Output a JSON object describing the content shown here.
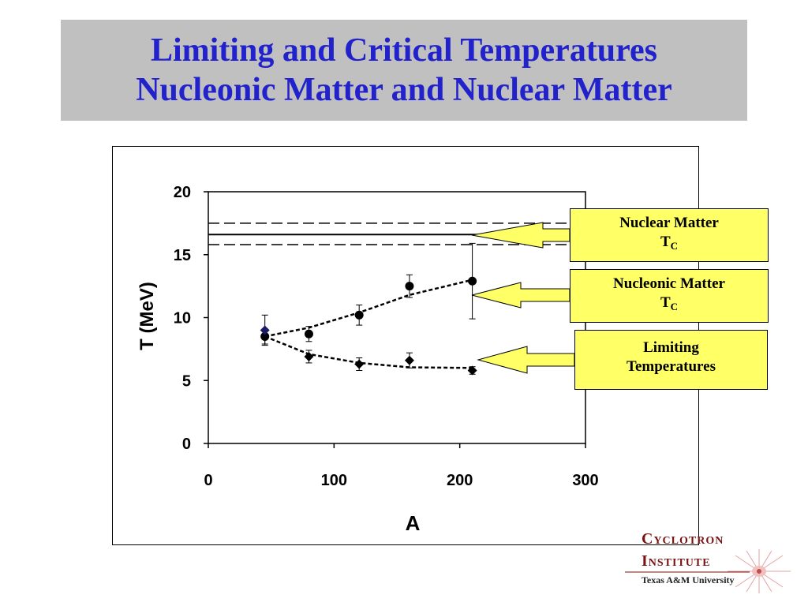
{
  "slide": {
    "title_line1": "Limiting and Critical Temperatures",
    "title_line2": "Nucleonic Matter and Nuclear Matter"
  },
  "callouts": {
    "nuclear": {
      "label": "Nuclear Matter",
      "symbol": "T",
      "subscript": "C"
    },
    "nucleonic": {
      "label": "Nucleonic Matter",
      "symbol": "T",
      "subscript": "C"
    },
    "limiting": {
      "line1": "Limiting",
      "line2": "Temperatures"
    }
  },
  "logo": {
    "line1": "Cyclotron",
    "line2": "Institute",
    "line3": "Texas A&M University"
  },
  "colors": {
    "title": "#2222cc",
    "title_box": "#c0c0c0",
    "callout_fill": "#ffff66",
    "logo_text": "#7a1212"
  },
  "chart_data": {
    "type": "scatter",
    "xlabel": "A",
    "ylabel": "T (MeV)",
    "xlim": [
      0,
      300
    ],
    "ylim": [
      0,
      20
    ],
    "xticks": [
      0,
      100,
      200,
      300
    ],
    "yticks": [
      0,
      5,
      10,
      15,
      20
    ],
    "grid": false,
    "series": [
      {
        "marker": "circle",
        "points": [
          {
            "x": 45,
            "y": 8.5,
            "err": 0.6
          },
          {
            "x": 80,
            "y": 8.7,
            "err": 0.6
          },
          {
            "x": 120,
            "y": 10.2,
            "err": 0.8
          },
          {
            "x": 160,
            "y": 12.5,
            "err": 0.9
          },
          {
            "x": 210,
            "y": 12.9,
            "err": 3.0
          }
        ],
        "fit": [
          [
            45,
            8.5
          ],
          [
            80,
            9.2
          ],
          [
            120,
            10.4
          ],
          [
            160,
            11.8
          ],
          [
            210,
            13.0
          ]
        ]
      },
      {
        "marker": "diamond",
        "points": [
          {
            "x": 45,
            "y": 9.0,
            "err": 1.2
          },
          {
            "x": 80,
            "y": 6.9,
            "err": 0.5
          },
          {
            "x": 120,
            "y": 6.3,
            "err": 0.5
          },
          {
            "x": 160,
            "y": 6.6,
            "err": 0.6
          },
          {
            "x": 210,
            "y": 5.8,
            "err": 0.3
          }
        ],
        "fit": [
          [
            45,
            8.5
          ],
          [
            80,
            7.1
          ],
          [
            120,
            6.4
          ],
          [
            160,
            6.05
          ],
          [
            210,
            6.0
          ]
        ]
      }
    ],
    "reference_lines": [
      {
        "y": 16.6,
        "style": "solid"
      },
      {
        "y": 17.5,
        "style": "dashed"
      },
      {
        "y": 15.8,
        "style": "dashed"
      }
    ]
  }
}
